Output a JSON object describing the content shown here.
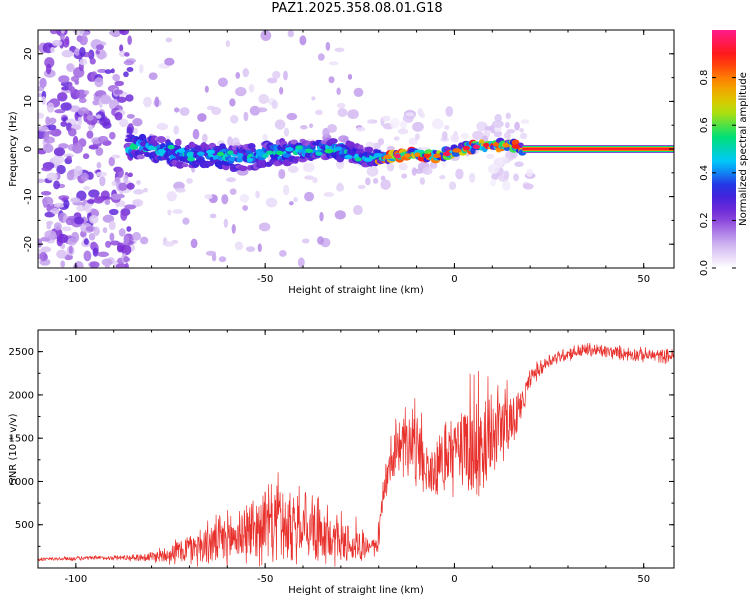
{
  "title": "PAZ1.2025.358.08.01.G18",
  "chart_data": [
    {
      "type": "heatmap",
      "xlabel": "Height of straight line (km)",
      "ylabel": "Frequency (Hz)",
      "xlim": [
        -110,
        58
      ],
      "ylim": [
        -25,
        25
      ],
      "xticks": [
        -100,
        -50,
        0,
        50
      ],
      "yticks": [
        -20,
        -10,
        0,
        10,
        20
      ],
      "colorbar": {
        "label": "Normalized spectral amplitude",
        "range": [
          0,
          1
        ],
        "ticks": [
          0.0,
          0.2,
          0.4,
          0.6,
          0.8
        ],
        "colormap": [
          "#ffffff",
          "#c9a9ee",
          "#7d2ed6",
          "#2a1ee0",
          "#00c8ff",
          "#00e070",
          "#c8e000",
          "#ff9400",
          "#ff1a10",
          "#ff1a8a"
        ]
      },
      "ridge": [
        {
          "x": -83,
          "f": 0.5
        },
        {
          "x": -75,
          "f": -0.8
        },
        {
          "x": -65,
          "f": -1.5
        },
        {
          "x": -55,
          "f": -1.8
        },
        {
          "x": -48,
          "f": -0.8
        },
        {
          "x": -40,
          "f": -0.5
        },
        {
          "x": -33,
          "f": 0.0
        },
        {
          "x": -28,
          "f": -0.5
        },
        {
          "x": -22,
          "f": -2.0
        },
        {
          "x": -15,
          "f": -1.5
        },
        {
          "x": -10,
          "f": -1.0
        },
        {
          "x": -5,
          "f": -1.5
        },
        {
          "x": 0,
          "f": -0.5
        },
        {
          "x": 5,
          "f": 0.5
        },
        {
          "x": 10,
          "f": 1.0
        },
        {
          "x": 15,
          "f": 0.8
        },
        {
          "x": 18,
          "f": 0.0
        },
        {
          "x": 58,
          "f": 0.0
        }
      ],
      "description_note": "Spectral ridge near 0 Hz; broadband noise below about -85 km; single clean tone above about 18 km"
    },
    {
      "type": "line",
      "xlabel": "Height of straight line (km)",
      "ylabel": "SNR (10 * v/v)",
      "xlim": [
        -110,
        58
      ],
      "ylim": [
        0,
        2750
      ],
      "xticks": [
        -100,
        -50,
        0,
        50
      ],
      "yticks": [
        500,
        1000,
        1500,
        2000,
        2500
      ],
      "series": [
        {
          "name": "SNR",
          "color": "#e8302c",
          "envelope": {
            "x": [
              -110,
              -100,
              -90,
              -85,
              -80,
              -75,
              -70,
              -65,
              -60,
              -55,
              -50,
              -47,
              -45,
              -42,
              -40,
              -35,
              -30,
              -25,
              -22,
              -20,
              -19,
              -15,
              -12,
              -10,
              -8,
              -6,
              -4,
              -2,
              0,
              2,
              4,
              6,
              8,
              10,
              12,
              14,
              16,
              18,
              20,
              25,
              30,
              35,
              40,
              45,
              50,
              55,
              58
            ],
            "mean": [
              100,
              110,
              120,
              120,
              130,
              170,
              230,
              280,
              330,
              420,
              500,
              530,
              520,
              460,
              400,
              340,
              290,
              260,
              230,
              300,
              900,
              1350,
              1400,
              1350,
              1200,
              1050,
              1150,
              1250,
              1350,
              1400,
              1350,
              1300,
              1350,
              1450,
              1600,
              1700,
              1650,
              1900,
              2200,
              2400,
              2480,
              2520,
              2500,
              2480,
              2460,
              2450,
              2450
            ],
            "spread": [
              40,
              40,
              45,
              60,
              110,
              200,
              330,
              420,
              520,
              600,
              750,
              800,
              750,
              650,
              550,
              500,
              430,
              350,
              150,
              250,
              380,
              450,
              600,
              650,
              500,
              450,
              550,
              700,
              800,
              900,
              1000,
              1000,
              900,
              800,
              700,
              600,
              500,
              250,
              180,
              140,
              130,
              140,
              130,
              130,
              130,
              130,
              130
            ]
          }
        }
      ]
    }
  ]
}
